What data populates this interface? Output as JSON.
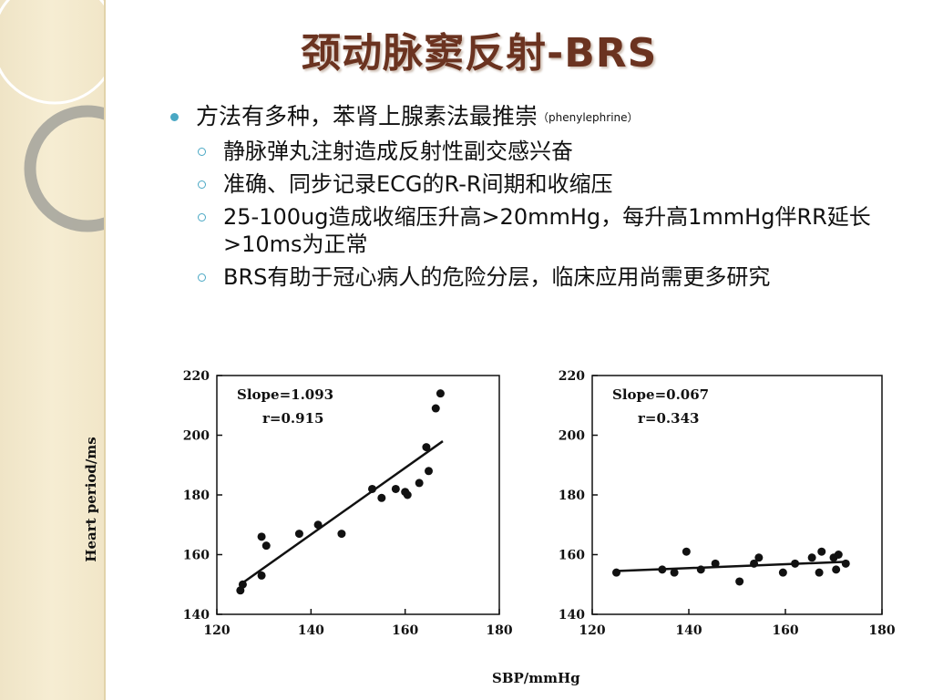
{
  "slide": {
    "title": "颈动脉窦反射-BRS",
    "bullet_main": "方法有多种，苯肾上腺素法最推崇",
    "bullet_main_note": "（phenylephrine）",
    "sub_bullets": [
      "静脉弹丸注射造成反射性副交感兴奋",
      "准确、同步记录ECG的R-R间期和收缩压",
      "25-100ug造成收缩压升高>20mmHg，每升高1mmHg伴RR延长>10ms为正常",
      "BRS有助于冠心病人的危险分层，临床应用尚需更多研究"
    ]
  },
  "colors": {
    "title": "#6b3320",
    "bullet": "#4aa8c4",
    "band": "#f3e9cd"
  },
  "chart_data": [
    {
      "type": "scatter",
      "xlim": [
        120,
        180
      ],
      "ylim": [
        140,
        220
      ],
      "xticks": [
        "120",
        "140",
        "160",
        "180"
      ],
      "yticks": [
        "140",
        "160",
        "180",
        "200",
        "220"
      ],
      "annotations": [
        "Slope=1.093",
        "r=0.915"
      ],
      "ylabel": "Heart period/ms",
      "xlabel": "SBP/mmHg",
      "points": [
        [
          125,
          148
        ],
        [
          125.5,
          150
        ],
        [
          129.5,
          166
        ],
        [
          129.5,
          153
        ],
        [
          130.5,
          163
        ],
        [
          137.5,
          167
        ],
        [
          141.5,
          170
        ],
        [
          146.5,
          167
        ],
        [
          153,
          182
        ],
        [
          155,
          179
        ],
        [
          158,
          182
        ],
        [
          160,
          181
        ],
        [
          160.5,
          180
        ],
        [
          163,
          184
        ],
        [
          164.5,
          196
        ],
        [
          165,
          188
        ],
        [
          166.5,
          209
        ],
        [
          167.5,
          214
        ]
      ],
      "fit": [
        [
          125,
          150
        ],
        [
          168,
          198
        ]
      ]
    },
    {
      "type": "scatter",
      "xlim": [
        120,
        180
      ],
      "ylim": [
        140,
        220
      ],
      "xticks": [
        "120",
        "140",
        "160",
        "180"
      ],
      "yticks": [
        "140",
        "160",
        "180",
        "200",
        "220"
      ],
      "annotations": [
        "Slope=0.067",
        "r=0.343"
      ],
      "points": [
        [
          125,
          154
        ],
        [
          134.5,
          155
        ],
        [
          137,
          154
        ],
        [
          139.5,
          161
        ],
        [
          142.5,
          155
        ],
        [
          145.5,
          157
        ],
        [
          150.5,
          151
        ],
        [
          153.5,
          157
        ],
        [
          154.5,
          159
        ],
        [
          159.5,
          154
        ],
        [
          162,
          157
        ],
        [
          165.5,
          159
        ],
        [
          167,
          154
        ],
        [
          167.5,
          161
        ],
        [
          170,
          159
        ],
        [
          170.5,
          155
        ],
        [
          171,
          160
        ],
        [
          172.5,
          157
        ]
      ],
      "fit": [
        [
          125,
          154.5
        ],
        [
          172.5,
          157.6
        ]
      ]
    }
  ]
}
